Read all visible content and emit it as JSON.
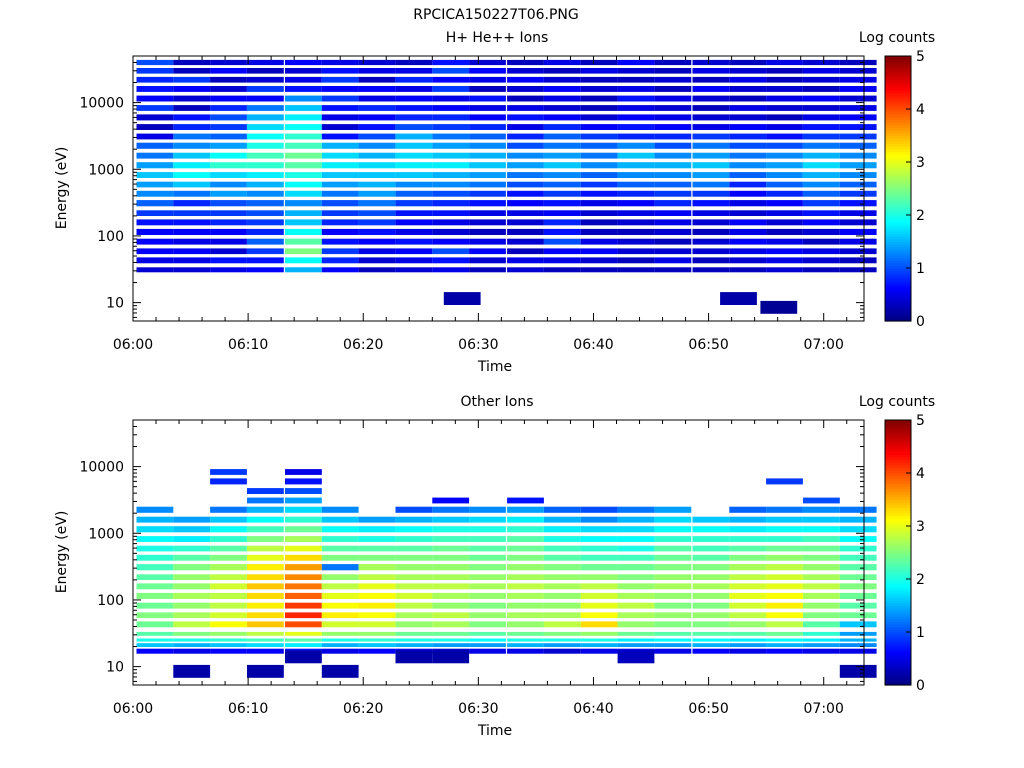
{
  "figure": {
    "title": "RPCICA150227T06.PNG"
  },
  "chart_data": [
    {
      "type": "heatmap",
      "title": "H+ He++ Ions",
      "xlabel": "Time",
      "ylabel": "Energy (eV)",
      "x_tick_labels": [
        "06:00",
        "06:10",
        "06:20",
        "06:30",
        "06:40",
        "06:50",
        "07:00"
      ],
      "y_tick_labels": [
        "10",
        "100",
        "1000",
        "10000"
      ],
      "y_scale": "log",
      "ylim": [
        5.3,
        50000
      ],
      "xlim_minutes": [
        0,
        63.5
      ],
      "colorbar": {
        "label": "Log counts",
        "range": [
          0,
          5
        ],
        "tick_labels": [
          "0",
          "1",
          "2",
          "3",
          "4",
          "5"
        ],
        "colormap": "jet"
      },
      "time_bins_minutes": [
        0.3,
        3.5,
        6.7,
        9.9,
        13.2,
        16.4,
        19.6,
        22.8,
        26.0,
        29.2,
        32.5,
        35.7,
        38.9,
        42.1,
        45.3,
        48.6,
        51.8,
        55.0,
        58.2,
        61.4
      ],
      "energy_levels_eV": [
        40000,
        30000,
        22000,
        16000,
        11500,
        8300,
        6000,
        4300,
        3100,
        2250,
        1600,
        1150,
        820,
        590,
        430,
        310,
        220,
        160,
        115,
        82,
        59,
        43,
        31
      ],
      "rows_comment_free": true,
      "values": [
        [
          1.0,
          0.9,
          0.8,
          0.7,
          0.6,
          0.9,
          0.4,
          0.3,
          0.5,
          1.1,
          1.2,
          1.4,
          1.6,
          1.4,
          1.3,
          1.1,
          0.9,
          0.7,
          0.6,
          0.6,
          0.6,
          0.5,
          0.4
        ],
        [
          0.3,
          0.3,
          0.9,
          0.6,
          0.4,
          0.3,
          0.7,
          0.8,
          1.2,
          1.3,
          1.6,
          1.8,
          1.9,
          1.6,
          1.2,
          0.8,
          0.9,
          0.7,
          0.6,
          0.5,
          0.6,
          0.5,
          0.4
        ],
        [
          0.4,
          0.6,
          0.3,
          0.4,
          0.6,
          0.8,
          1.0,
          0.9,
          1.1,
          1.4,
          1.9,
          2.1,
          1.7,
          1.3,
          1.4,
          1.0,
          0.9,
          0.8,
          0.6,
          0.5,
          0.4,
          0.7,
          0.5
        ],
        [
          0.5,
          0.3,
          0.4,
          0.9,
          0.6,
          1.2,
          1.5,
          1.7,
          1.9,
          2.0,
          2.2,
          2.1,
          1.8,
          1.5,
          1.3,
          1.1,
          1.0,
          0.9,
          0.8,
          1.1,
          0.9,
          0.7,
          0.6
        ],
        [
          0.6,
          0.4,
          0.5,
          0.7,
          1.3,
          1.6,
          1.8,
          1.9,
          2.1,
          2.2,
          2.4,
          2.3,
          2.0,
          1.9,
          1.7,
          1.3,
          1.5,
          1.6,
          1.9,
          2.3,
          2.5,
          1.9,
          1.5
        ],
        [
          0.5,
          0.7,
          0.9,
          0.6,
          0.9,
          0.7,
          0.5,
          0.4,
          0.7,
          1.5,
          1.7,
          1.8,
          1.6,
          1.4,
          1.2,
          1.0,
          0.9,
          0.8,
          0.6,
          0.7,
          0.9,
          0.8,
          0.6
        ],
        [
          0.4,
          0.5,
          0.3,
          0.6,
          0.5,
          0.8,
          0.6,
          0.7,
          1.0,
          1.3,
          1.5,
          1.7,
          1.6,
          1.5,
          1.4,
          1.2,
          1.0,
          0.9,
          0.7,
          0.6,
          0.5,
          0.4,
          0.3
        ],
        [
          0.3,
          0.5,
          0.8,
          0.5,
          0.6,
          0.7,
          0.8,
          1.0,
          1.5,
          1.6,
          1.7,
          1.8,
          1.6,
          1.3,
          1.1,
          0.9,
          0.7,
          0.6,
          0.5,
          0.7,
          0.6,
          0.5,
          0.4
        ],
        [
          0.7,
          1.0,
          0.6,
          0.9,
          0.5,
          0.6,
          0.8,
          0.9,
          1.2,
          1.4,
          1.6,
          1.8,
          1.5,
          1.3,
          1.0,
          0.8,
          0.7,
          0.5,
          0.4,
          0.6,
          1.0,
          0.7,
          0.5
        ],
        [
          0.4,
          0.6,
          0.5,
          0.3,
          0.7,
          0.5,
          0.6,
          0.8,
          1.1,
          1.3,
          1.5,
          1.6,
          1.4,
          1.2,
          0.9,
          0.7,
          0.5,
          0.4,
          0.3,
          0.5,
          0.6,
          0.4,
          0.3
        ],
        [
          0.3,
          0.4,
          0.6,
          0.4,
          0.3,
          0.5,
          0.7,
          0.5,
          0.8,
          1.0,
          1.3,
          1.4,
          1.2,
          1.0,
          0.7,
          0.6,
          0.5,
          0.4,
          0.3,
          0.4,
          0.3,
          0.5,
          0.4
        ],
        [
          0.5,
          0.3,
          0.4,
          0.6,
          0.5,
          0.4,
          0.6,
          0.8,
          1.1,
          1.2,
          1.4,
          1.6,
          1.3,
          1.1,
          0.9,
          0.7,
          0.6,
          0.8,
          0.7,
          1.0,
          0.6,
          0.5,
          0.3
        ],
        [
          0.3,
          0.5,
          0.3,
          0.4,
          0.3,
          0.3,
          0.4,
          0.6,
          0.9,
          1.1,
          1.2,
          1.3,
          1.1,
          0.9,
          0.7,
          0.5,
          0.4,
          0.3,
          0.3,
          0.5,
          0.6,
          0.4,
          0.3
        ],
        [
          0.6,
          0.4,
          0.3,
          0.5,
          0.7,
          0.5,
          0.6,
          0.7,
          0.8,
          1.3,
          1.6,
          1.5,
          1.3,
          1.1,
          0.8,
          0.6,
          0.5,
          0.4,
          0.3,
          0.4,
          0.4,
          0.3,
          0.3
        ],
        [
          0.3,
          0.3,
          0.4,
          0.3,
          0.5,
          0.4,
          0.5,
          0.6,
          0.8,
          1.0,
          1.3,
          1.5,
          1.3,
          1.1,
          0.9,
          0.8,
          0.6,
          0.5,
          0.4,
          0.3,
          0.4,
          0.5,
          0.3
        ],
        [
          0.4,
          0.5,
          0.3,
          0.6,
          0.4,
          0.3,
          0.4,
          0.5,
          0.9,
          1.2,
          1.4,
          1.6,
          1.4,
          1.2,
          0.9,
          0.7,
          0.5,
          0.4,
          0.3,
          0.4,
          0.4,
          0.3,
          0.3
        ],
        [
          0.3,
          0.4,
          0.5,
          0.4,
          0.3,
          0.5,
          0.4,
          0.6,
          0.8,
          1.0,
          1.2,
          1.3,
          1.1,
          0.8,
          0.6,
          0.5,
          0.4,
          0.6,
          0.5,
          0.6,
          0.5,
          0.4,
          0.3
        ],
        [
          0.5,
          0.3,
          0.3,
          0.4,
          0.5,
          0.4,
          0.3,
          0.5,
          0.7,
          1.0,
          1.3,
          1.4,
          1.3,
          1.1,
          0.8,
          0.6,
          0.5,
          0.4,
          0.3,
          0.5,
          0.6,
          0.5,
          0.4
        ],
        [
          0.4,
          0.5,
          0.4,
          0.3,
          0.6,
          0.4,
          0.5,
          0.7,
          0.9,
          1.2,
          1.5,
          1.7,
          1.5,
          1.3,
          1.1,
          0.9,
          0.7,
          0.6,
          0.4,
          0.3,
          0.5,
          0.4,
          0.3
        ],
        [
          0.3,
          0.4,
          0.5,
          0.6,
          0.4,
          0.5,
          0.6,
          0.7,
          0.9,
          1.1,
          1.3,
          1.4,
          1.3,
          1.1,
          0.9,
          0.7,
          0.5,
          0.4,
          0.6,
          0.5,
          0.4,
          0.3,
          0.3
        ]
      ],
      "sparse_low_energy": [
        {
          "time_minutes": 27.0,
          "energy_eV": 11.5,
          "value": 0.2
        },
        {
          "time_minutes": 51.0,
          "energy_eV": 11.5,
          "value": 0.2
        },
        {
          "time_minutes": 54.5,
          "energy_eV": 8.5,
          "value": 0.1
        }
      ]
    },
    {
      "type": "heatmap",
      "title": "Other Ions",
      "xlabel": "Time",
      "ylabel": "Energy (eV)",
      "x_tick_labels": [
        "06:00",
        "06:10",
        "06:20",
        "06:30",
        "06:40",
        "06:50",
        "07:00"
      ],
      "y_tick_labels": [
        "10",
        "100",
        "1000",
        "10000"
      ],
      "y_scale": "log",
      "ylim": [
        5.3,
        50000
      ],
      "xlim_minutes": [
        0,
        63.5
      ],
      "colorbar": {
        "label": "Log counts",
        "range": [
          0,
          5
        ],
        "tick_labels": [
          "0",
          "1",
          "2",
          "3",
          "4",
          "5"
        ],
        "colormap": "jet"
      },
      "time_bins_minutes": [
        0.3,
        3.5,
        6.7,
        9.9,
        13.2,
        16.4,
        19.6,
        22.8,
        26.0,
        29.2,
        32.5,
        35.7,
        38.9,
        42.1,
        45.3,
        48.6,
        51.8,
        55.0,
        58.2,
        61.4
      ],
      "energy_levels_eV": [
        8300,
        6000,
        4300,
        3100,
        2250,
        1600,
        1150,
        820,
        590,
        430,
        310,
        220,
        160,
        115,
        82,
        59,
        43,
        31,
        25,
        21,
        17
      ],
      "values": [
        [
          null,
          null,
          null,
          null,
          1.3,
          1.5,
          1.7,
          1.9,
          2.0,
          2.1,
          2.2,
          2.3,
          2.4,
          2.5,
          2.4,
          2.5,
          2.4,
          2.3,
          2.0,
          1.6,
          0.6
        ],
        [
          null,
          null,
          null,
          null,
          null,
          1.4,
          1.6,
          1.8,
          2.1,
          2.3,
          2.5,
          2.6,
          2.6,
          2.7,
          2.6,
          2.7,
          2.8,
          2.5,
          2.0,
          1.5,
          0.5
        ],
        [
          0.9,
          0.8,
          null,
          null,
          1.2,
          1.6,
          1.9,
          2.1,
          2.3,
          2.5,
          2.7,
          2.8,
          2.9,
          2.8,
          2.8,
          2.9,
          3.1,
          2.6,
          2.1,
          1.6,
          0.6
        ],
        [
          null,
          null,
          0.9,
          1.2,
          1.5,
          1.9,
          2.2,
          2.5,
          2.8,
          3.0,
          3.2,
          3.3,
          3.4,
          3.3,
          3.2,
          3.3,
          3.4,
          2.8,
          2.2,
          1.7,
          0.6
        ],
        [
          0.5,
          0.7,
          1.0,
          1.4,
          1.7,
          2.1,
          2.4,
          2.7,
          3.0,
          3.3,
          3.6,
          3.7,
          3.8,
          3.9,
          4.1,
          4.2,
          4.0,
          3.0,
          2.3,
          1.8,
          0.7
        ],
        [
          null,
          null,
          null,
          null,
          1.3,
          1.6,
          1.9,
          2.1,
          2.3,
          2.5,
          1.2,
          2.6,
          2.8,
          3.0,
          3.1,
          3.2,
          2.9,
          2.6,
          2.0,
          1.5,
          0.5
        ],
        [
          null,
          null,
          null,
          null,
          null,
          1.4,
          1.8,
          2.0,
          2.3,
          2.5,
          2.7,
          2.8,
          3.0,
          3.1,
          3.2,
          3.1,
          2.9,
          2.6,
          2.1,
          1.6,
          0.6
        ],
        [
          null,
          null,
          null,
          null,
          1.0,
          1.5,
          1.9,
          2.1,
          2.3,
          2.5,
          2.6,
          2.7,
          2.8,
          2.9,
          2.8,
          2.7,
          2.6,
          2.4,
          2.0,
          1.5,
          0.5
        ],
        [
          null,
          null,
          null,
          0.6,
          1.2,
          1.6,
          2.0,
          2.2,
          2.4,
          2.5,
          2.6,
          2.7,
          2.8,
          2.7,
          2.6,
          2.8,
          2.7,
          2.4,
          2.0,
          1.4,
          0.4
        ],
        [
          null,
          null,
          null,
          null,
          1.3,
          1.7,
          2.0,
          2.2,
          2.3,
          2.4,
          2.5,
          2.6,
          2.7,
          2.6,
          2.5,
          2.6,
          2.5,
          2.3,
          1.9,
          1.4,
          0.5
        ],
        [
          null,
          null,
          null,
          0.7,
          1.4,
          1.8,
          2.1,
          2.3,
          2.4,
          2.5,
          2.6,
          2.7,
          2.8,
          2.7,
          2.6,
          2.7,
          2.6,
          2.4,
          2.0,
          1.5,
          0.5
        ],
        [
          null,
          null,
          null,
          null,
          1.1,
          1.5,
          1.8,
          2.0,
          2.2,
          2.3,
          2.5,
          2.6,
          2.7,
          2.6,
          2.6,
          2.7,
          2.8,
          2.5,
          2.0,
          1.4,
          0.4
        ],
        [
          null,
          null,
          null,
          null,
          1.0,
          1.3,
          1.7,
          1.9,
          2.1,
          2.2,
          2.4,
          2.6,
          2.8,
          2.9,
          3.0,
          3.1,
          3.3,
          2.6,
          2.0,
          1.5,
          0.5
        ],
        [
          null,
          null,
          null,
          null,
          1.2,
          1.5,
          1.7,
          1.9,
          2.0,
          2.2,
          2.4,
          2.5,
          2.6,
          2.7,
          2.8,
          2.7,
          2.6,
          2.4,
          1.8,
          1.4,
          0.5
        ],
        [
          null,
          null,
          null,
          null,
          1.4,
          1.7,
          1.9,
          2.1,
          2.3,
          2.4,
          2.5,
          2.6,
          2.7,
          2.6,
          2.5,
          2.6,
          2.5,
          2.3,
          1.9,
          1.4,
          0.5
        ],
        [
          null,
          null,
          null,
          null,
          null,
          1.6,
          1.9,
          2.1,
          2.2,
          2.3,
          2.5,
          2.6,
          2.7,
          2.6,
          2.5,
          2.6,
          2.5,
          2.3,
          1.9,
          1.5,
          0.6
        ],
        [
          null,
          null,
          null,
          null,
          1.1,
          1.5,
          1.8,
          2.1,
          2.3,
          2.5,
          2.7,
          2.8,
          2.9,
          3.0,
          2.9,
          2.8,
          2.6,
          2.3,
          1.8,
          1.4,
          0.5
        ],
        [
          null,
          0.9,
          null,
          null,
          1.2,
          1.6,
          1.9,
          2.1,
          2.4,
          2.6,
          2.8,
          2.9,
          3.0,
          3.1,
          3.2,
          3.1,
          2.8,
          2.4,
          1.9,
          1.5,
          0.6
        ],
        [
          null,
          null,
          null,
          1.0,
          1.3,
          1.6,
          1.9,
          2.2,
          2.4,
          2.5,
          2.6,
          2.7,
          2.8,
          2.7,
          2.6,
          2.5,
          2.3,
          2.1,
          1.8,
          1.4,
          0.5
        ],
        [
          null,
          null,
          null,
          null,
          1.2,
          1.5,
          1.7,
          1.9,
          2.1,
          2.2,
          2.3,
          2.4,
          2.5,
          2.4,
          2.3,
          2.4,
          1.6,
          1.4,
          1.5,
          1.3,
          0.5
        ]
      ],
      "sparse_low_energy": [
        {
          "time_minutes": 3.5,
          "energy_eV": 8.5,
          "value": 0.2
        },
        {
          "time_minutes": 9.9,
          "energy_eV": 8.5,
          "value": 0.2
        },
        {
          "time_minutes": 13.2,
          "energy_eV": 14.0,
          "value": 0.2
        },
        {
          "time_minutes": 16.4,
          "energy_eV": 8.5,
          "value": 0.2
        },
        {
          "time_minutes": 26.0,
          "energy_eV": 14.0,
          "value": 0.2
        },
        {
          "time_minutes": 22.8,
          "energy_eV": 14.0,
          "value": 0.2
        },
        {
          "time_minutes": 42.1,
          "energy_eV": 14.0,
          "value": 0.3
        },
        {
          "time_minutes": 61.4,
          "energy_eV": 8.5,
          "value": 0.2
        }
      ]
    }
  ]
}
